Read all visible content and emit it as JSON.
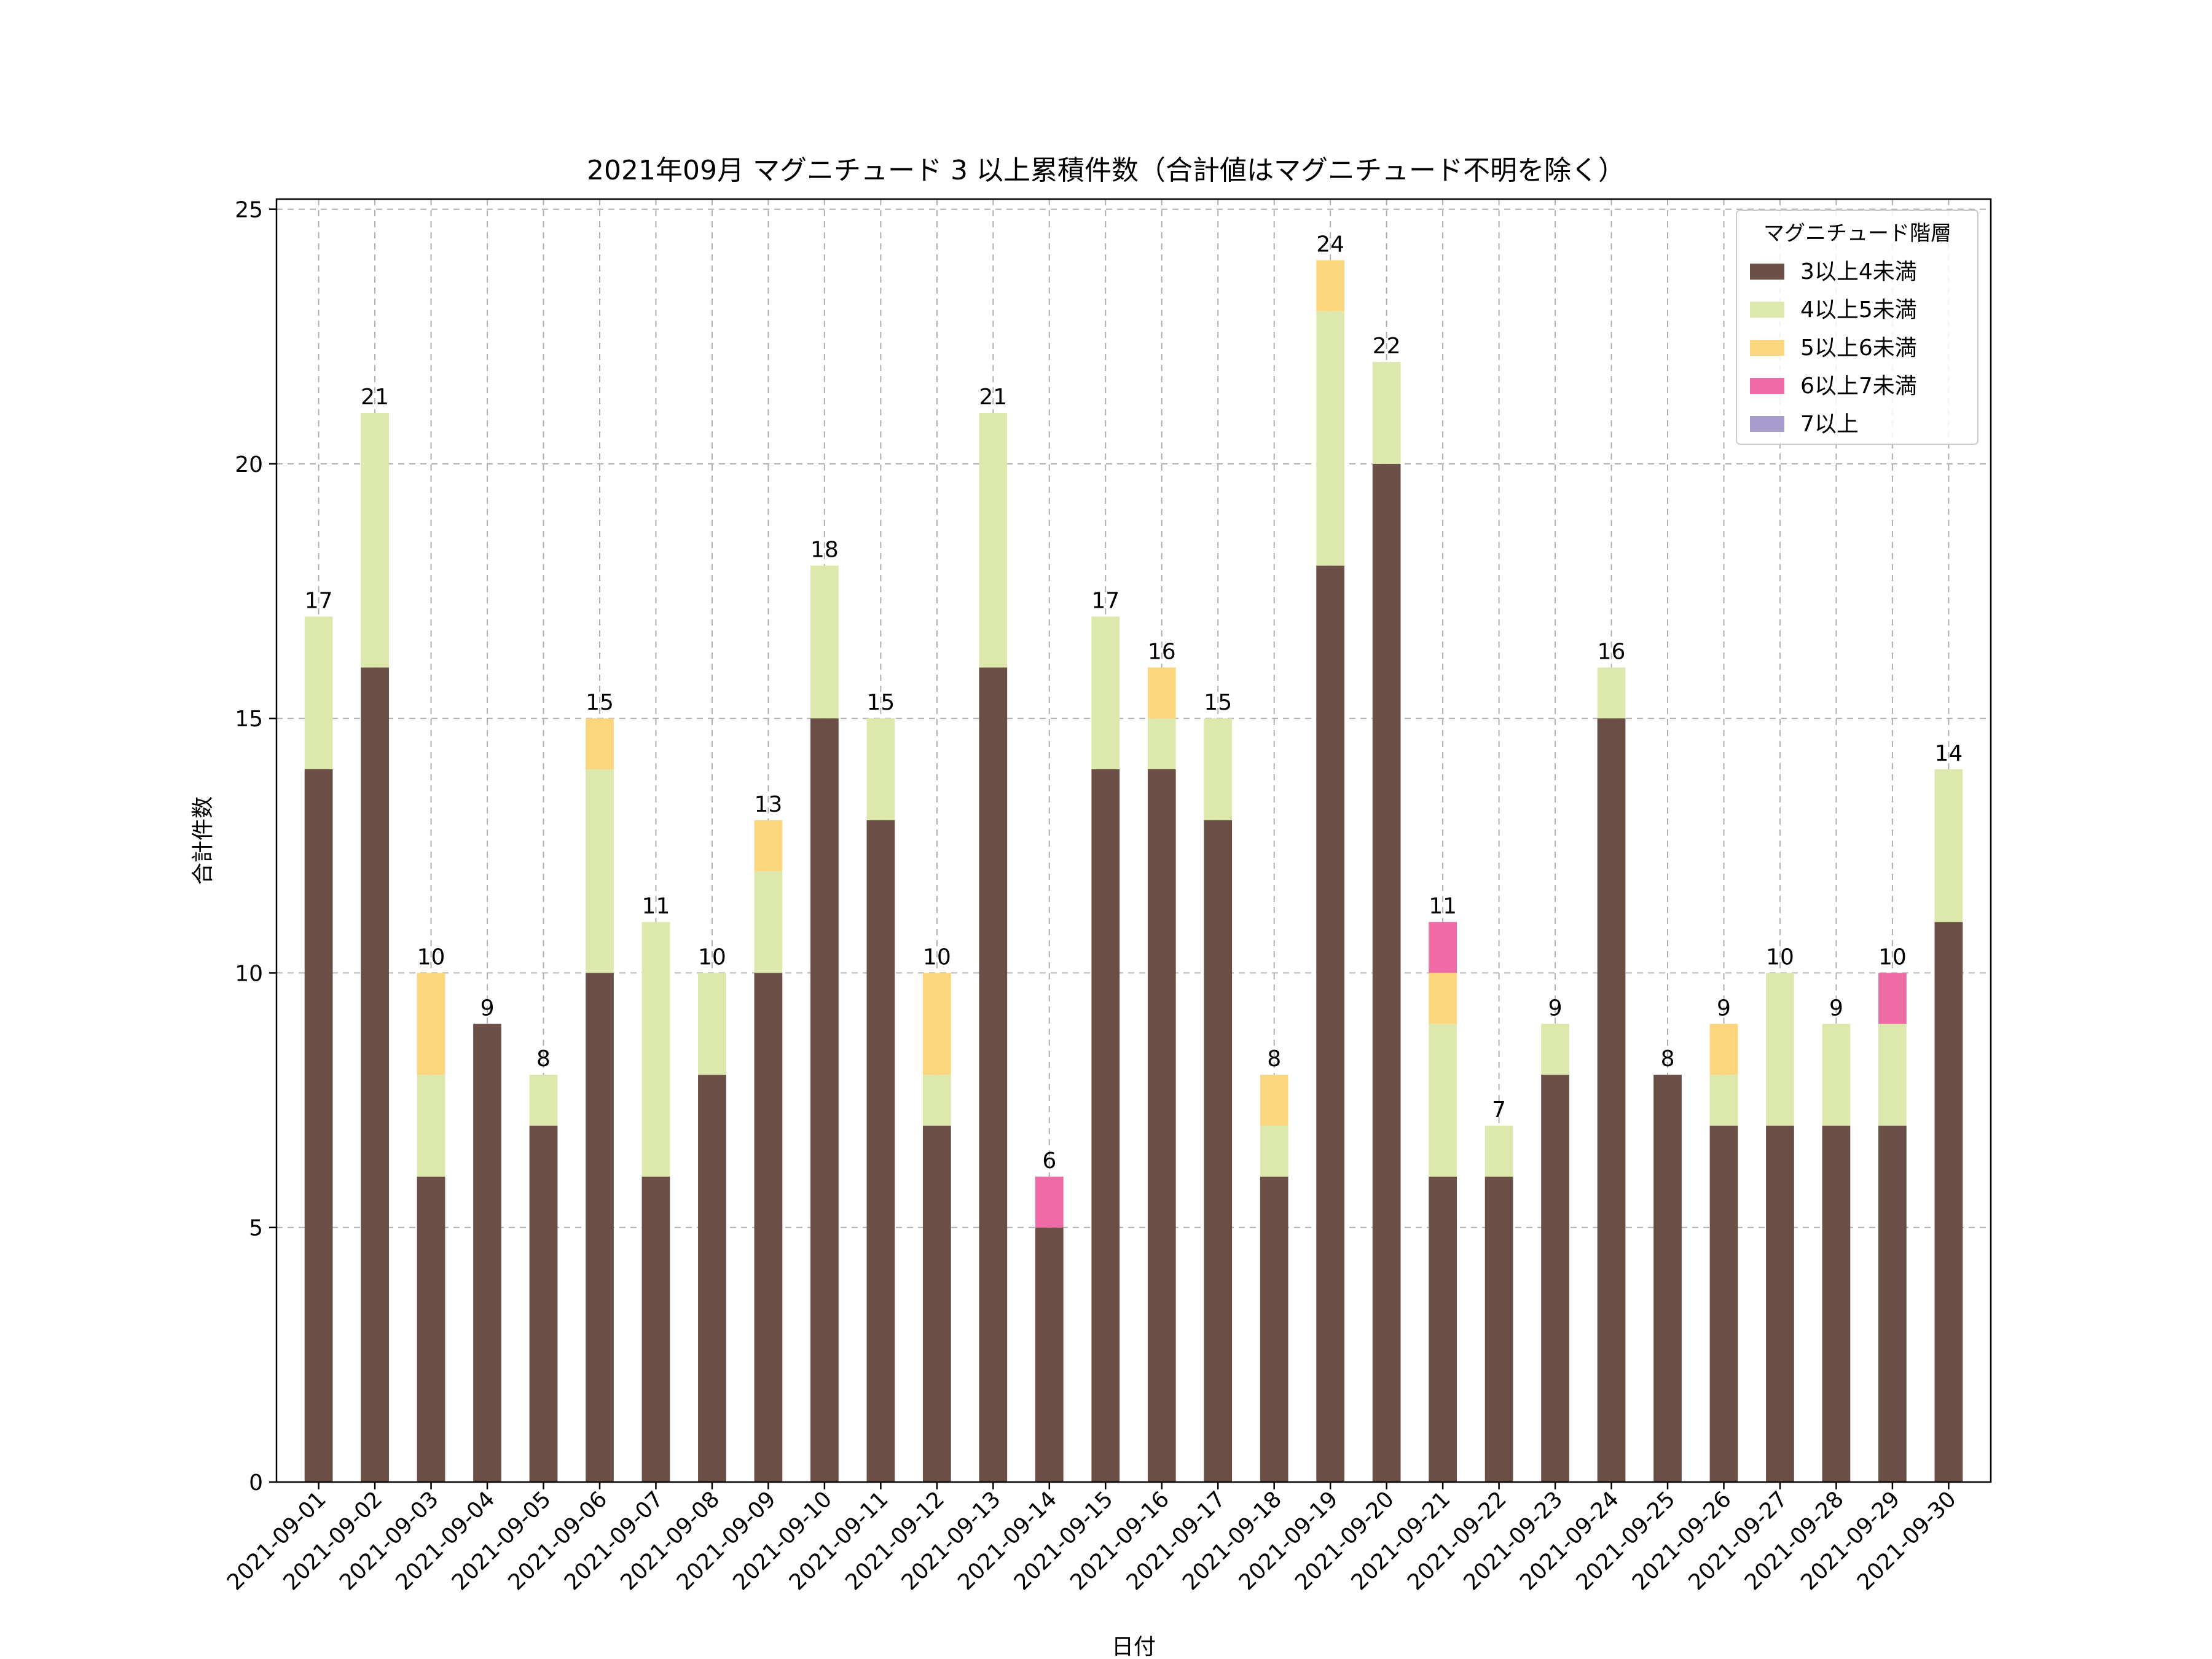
{
  "chart_data": {
    "type": "bar",
    "stacked": true,
    "title": "2021年09月 マグニチュード 3 以上累積件数（合計値はマグニチュード不明を除く）",
    "xlabel": "日付",
    "ylabel": "合計件数",
    "ylim": [
      0,
      25.2
    ],
    "yticks": [
      "0",
      "5",
      "10",
      "15",
      "20",
      "25"
    ],
    "grid": true,
    "legend_title": "マグニチュード階層",
    "legend_position": "top-right",
    "categories": [
      "2021-09-01",
      "2021-09-02",
      "2021-09-03",
      "2021-09-04",
      "2021-09-05",
      "2021-09-06",
      "2021-09-07",
      "2021-09-08",
      "2021-09-09",
      "2021-09-10",
      "2021-09-11",
      "2021-09-12",
      "2021-09-13",
      "2021-09-14",
      "2021-09-15",
      "2021-09-16",
      "2021-09-17",
      "2021-09-18",
      "2021-09-19",
      "2021-09-20",
      "2021-09-21",
      "2021-09-22",
      "2021-09-23",
      "2021-09-24",
      "2021-09-25",
      "2021-09-26",
      "2021-09-27",
      "2021-09-28",
      "2021-09-29",
      "2021-09-30"
    ],
    "series": [
      {
        "name": "3以上4未満",
        "color": "#6b4e45",
        "values": [
          14,
          16,
          6,
          9,
          7,
          10,
          6,
          8,
          10,
          15,
          13,
          7,
          16,
          5,
          14,
          14,
          13,
          6,
          18,
          20,
          6,
          6,
          8,
          15,
          8,
          7,
          7,
          7,
          7,
          11
        ]
      },
      {
        "name": "4以上5未満",
        "color": "#dde8ad",
        "values": [
          3,
          5,
          2,
          0,
          1,
          4,
          5,
          2,
          2,
          3,
          2,
          1,
          5,
          0,
          3,
          1,
          2,
          1,
          5,
          2,
          3,
          1,
          1,
          1,
          0,
          1,
          3,
          2,
          2,
          3
        ]
      },
      {
        "name": "5以上6未満",
        "color": "#fcd67e",
        "values": [
          0,
          0,
          2,
          0,
          0,
          1,
          0,
          0,
          1,
          0,
          0,
          2,
          0,
          0,
          0,
          1,
          0,
          1,
          1,
          0,
          1,
          0,
          0,
          0,
          0,
          1,
          0,
          0,
          0,
          0
        ]
      },
      {
        "name": "6以上7未満",
        "color": "#ef6ba5",
        "values": [
          0,
          0,
          0,
          0,
          0,
          0,
          0,
          0,
          0,
          0,
          0,
          0,
          0,
          1,
          0,
          0,
          0,
          0,
          0,
          0,
          1,
          0,
          0,
          0,
          0,
          0,
          0,
          0,
          1,
          0
        ]
      },
      {
        "name": "7以上",
        "color": "#a89ccd",
        "values": [
          0,
          0,
          0,
          0,
          0,
          0,
          0,
          0,
          0,
          0,
          0,
          0,
          0,
          0,
          0,
          0,
          0,
          0,
          0,
          0,
          0,
          0,
          0,
          0,
          0,
          0,
          0,
          0,
          0,
          0
        ]
      }
    ],
    "totals": [
      17,
      21,
      10,
      9,
      8,
      15,
      11,
      10,
      13,
      18,
      15,
      10,
      21,
      6,
      17,
      16,
      15,
      8,
      24,
      22,
      11,
      7,
      9,
      16,
      8,
      9,
      10,
      9,
      10,
      14
    ]
  }
}
